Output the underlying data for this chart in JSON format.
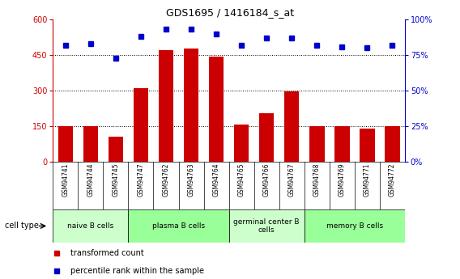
{
  "title": "GDS1695 / 1416184_s_at",
  "samples": [
    "GSM94741",
    "GSM94744",
    "GSM94745",
    "GSM94747",
    "GSM94762",
    "GSM94763",
    "GSM94764",
    "GSM94765",
    "GSM94766",
    "GSM94767",
    "GSM94768",
    "GSM94769",
    "GSM94771",
    "GSM94772"
  ],
  "bar_values": [
    150,
    152,
    105,
    310,
    470,
    478,
    445,
    158,
    205,
    298,
    150,
    150,
    140,
    152
  ],
  "dot_values": [
    82,
    83,
    73,
    88,
    93,
    93,
    90,
    82,
    87,
    87,
    82,
    81,
    80,
    82
  ],
  "bar_color": "#cc0000",
  "dot_color": "#0000cc",
  "ylim_left": [
    0,
    600
  ],
  "ylim_right": [
    0,
    100
  ],
  "yticks_left": [
    0,
    150,
    300,
    450,
    600
  ],
  "yticks_right": [
    0,
    25,
    50,
    75,
    100
  ],
  "ytick_labels_left": [
    "0",
    "150",
    "300",
    "450",
    "600"
  ],
  "ytick_labels_right": [
    "0%",
    "25%",
    "50%",
    "75%",
    "100%"
  ],
  "cell_type_label": "cell type",
  "groups": [
    {
      "label": "naive B cells",
      "start": 0,
      "end": 3,
      "color": "#ccffcc"
    },
    {
      "label": "plasma B cells",
      "start": 3,
      "end": 7,
      "color": "#99ff99"
    },
    {
      "label": "germinal center B\ncells",
      "start": 7,
      "end": 10,
      "color": "#ccffcc"
    },
    {
      "label": "memory B cells",
      "start": 10,
      "end": 14,
      "color": "#99ff99"
    }
  ],
  "legend_bar_label": "transformed count",
  "legend_dot_label": "percentile rank within the sample",
  "label_bg_color": "#d3d3d3",
  "plot_bg_color": "#ffffff",
  "n_samples": 14
}
